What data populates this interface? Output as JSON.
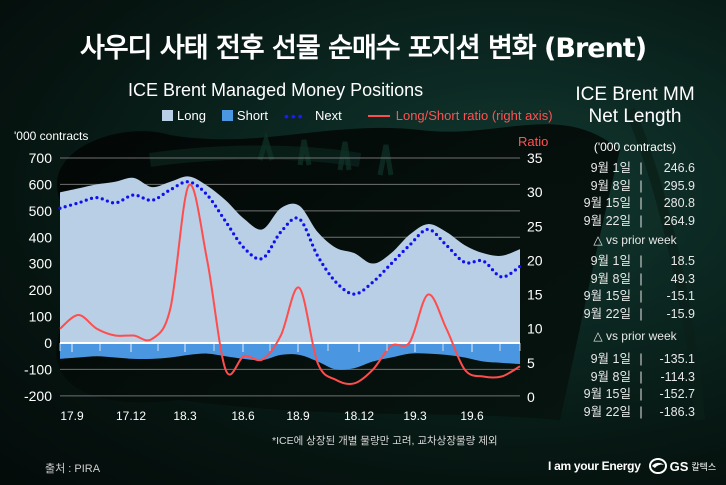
{
  "title": "사우디 사태 전후 선물 순매수 포지션 변화 (Brent)",
  "chart_data": {
    "type": "area+line",
    "title": "ICE Brent Managed Money Positions",
    "ylabel": "'000 contracts",
    "y2label": "Ratio",
    "ylim": [
      -200,
      700
    ],
    "y2lim": [
      0,
      35
    ],
    "yticks": [
      700,
      600,
      500,
      400,
      300,
      200,
      100,
      0,
      -100,
      -200
    ],
    "y2ticks": [
      35,
      30,
      25,
      20,
      15,
      10,
      5,
      0
    ],
    "xticks": [
      "17.9",
      "17.12",
      "18.3",
      "18.6",
      "18.9",
      "18.12",
      "19.3",
      "19.6"
    ],
    "grid": true,
    "legend": [
      {
        "name": "Long",
        "color": "#b8cfe6",
        "kind": "area"
      },
      {
        "name": "Short",
        "color": "#4a96e0",
        "kind": "area"
      },
      {
        "name": "Next",
        "color": "#1010ee",
        "kind": "dotted"
      },
      {
        "name": "Long/Short ratio (right axis)",
        "color": "#ff4d4d",
        "kind": "line"
      }
    ],
    "x": [
      "17.8",
      "17.9",
      "17.10",
      "17.11",
      "17.12",
      "18.1",
      "18.2",
      "18.3",
      "18.4",
      "18.5",
      "18.6",
      "18.7",
      "18.8",
      "18.9",
      "18.10",
      "18.11",
      "18.12",
      "19.1",
      "19.2",
      "19.3",
      "19.4",
      "19.5",
      "19.6",
      "19.7",
      "19.8",
      "19.9"
    ],
    "series": [
      {
        "name": "Long",
        "axis": "left",
        "values": [
          570,
          585,
          600,
          610,
          625,
          590,
          610,
          630,
          595,
          540,
          470,
          430,
          510,
          520,
          420,
          360,
          340,
          300,
          340,
          410,
          450,
          420,
          370,
          340,
          330,
          355
        ]
      },
      {
        "name": "Short",
        "axis": "left",
        "values": [
          -60,
          -55,
          -50,
          -55,
          -60,
          -60,
          -55,
          -45,
          -40,
          -50,
          -60,
          -65,
          -45,
          -45,
          -70,
          -100,
          -95,
          -70,
          -55,
          -40,
          -40,
          -45,
          -55,
          -70,
          -75,
          -80
        ]
      },
      {
        "name": "Next",
        "axis": "left",
        "values": [
          510,
          530,
          550,
          530,
          560,
          540,
          580,
          610,
          560,
          460,
          360,
          320,
          420,
          470,
          330,
          230,
          185,
          230,
          300,
          370,
          430,
          370,
          305,
          310,
          250,
          290
        ]
      },
      {
        "name": "Long/Short ratio",
        "axis": "right",
        "values": [
          10,
          12,
          10,
          9,
          9,
          8.5,
          13,
          31,
          20,
          4,
          6,
          5.5,
          9,
          16,
          5,
          2.5,
          2,
          4,
          7.5,
          8,
          15,
          10,
          4,
          3,
          3,
          4.5
        ]
      }
    ]
  },
  "legend_labels": {
    "long": "Long",
    "short": "Short",
    "next": "Next",
    "ratio": "Long/Short ratio (right axis)"
  },
  "axis": {
    "left_label": "'000 contracts",
    "right_label": "Ratio"
  },
  "side_panel": {
    "title_line1": "ICE Brent MM",
    "title_line2": "Net Length",
    "unit": "('000 contracts)",
    "net_length": [
      {
        "date": "9월 1일",
        "sep": "|",
        "value": "246.6"
      },
      {
        "date": "9월 8일",
        "sep": "|",
        "value": "295.9"
      },
      {
        "date": "9월 15일",
        "sep": "|",
        "value": "280.8"
      },
      {
        "date": "9월 22일",
        "sep": "|",
        "value": "264.9"
      }
    ],
    "delta_label_1": "△ vs prior week",
    "delta_1": [
      {
        "date": "9월 1일",
        "sep": "|",
        "value": "18.5"
      },
      {
        "date": "9월 8일",
        "sep": "|",
        "value": "49.3"
      },
      {
        "date": "9월 15일",
        "sep": "|",
        "value": "-15.1"
      },
      {
        "date": "9월 22일",
        "sep": "|",
        "value": "-15.9"
      }
    ],
    "delta_label_2": "△ vs prior week",
    "delta_2": [
      {
        "date": "9월 1일",
        "sep": "|",
        "value": "-135.1"
      },
      {
        "date": "9월 8일",
        "sep": "|",
        "value": "-114.3"
      },
      {
        "date": "9월 15일",
        "sep": "|",
        "value": "-152.7"
      },
      {
        "date": "9월 22일",
        "sep": "|",
        "value": "-186.3"
      }
    ]
  },
  "footnote": "*ICE에 상장된 개별 물량만 고려, 교차상장물량 제외",
  "source": "출처 : PIRA",
  "brand": {
    "slogan": "I am your Energy",
    "name": "GS",
    "name_kr": "칼텍스"
  }
}
